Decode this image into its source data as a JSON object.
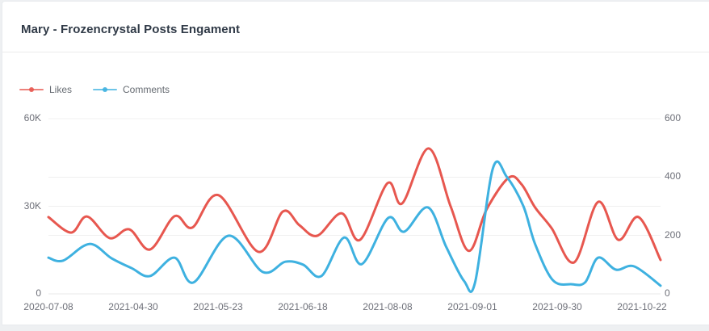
{
  "header": {
    "title": "Mary - Frozencrystal Posts Engament"
  },
  "legend": {
    "items": [
      {
        "label": "Likes",
        "color": "#e7574f"
      },
      {
        "label": "Comments",
        "color": "#3eb1e0"
      }
    ]
  },
  "chart_data": {
    "type": "line",
    "title": "Mary - Frozencrystal Posts Engament",
    "smooth": true,
    "grid": true,
    "legend_position": "top-left",
    "x_tick_labels": [
      "2020-07-08",
      "2021-04-30",
      "2021-05-23",
      "2021-06-18",
      "2021-08-08",
      "2021-09-01",
      "2021-09-30",
      "2021-10-22"
    ],
    "y_axis_left": {
      "series": "Likes",
      "tick_labels": [
        "60K",
        "30K",
        "0"
      ],
      "min": 0,
      "max": 60000,
      "grid_values": [
        0,
        30000,
        60000
      ]
    },
    "y_axis_right": {
      "series": "Comments",
      "tick_labels": [
        "600",
        "400",
        "200",
        "0"
      ],
      "min": 0,
      "max": 600,
      "grid_values": [
        0,
        200,
        400,
        600
      ]
    },
    "series": [
      {
        "name": "Likes",
        "axis": "left",
        "color": "#e7574f",
        "points": [
          [
            0.0,
            26300
          ],
          [
            0.037,
            21000
          ],
          [
            0.063,
            26500
          ],
          [
            0.1,
            19100
          ],
          [
            0.132,
            22100
          ],
          [
            0.166,
            15200
          ],
          [
            0.206,
            26600
          ],
          [
            0.235,
            22700
          ],
          [
            0.278,
            33800
          ],
          [
            0.343,
            14400
          ],
          [
            0.383,
            28200
          ],
          [
            0.41,
            23500
          ],
          [
            0.439,
            19900
          ],
          [
            0.479,
            27600
          ],
          [
            0.509,
            18500
          ],
          [
            0.554,
            37900
          ],
          [
            0.578,
            31000
          ],
          [
            0.621,
            49800
          ],
          [
            0.657,
            30000
          ],
          [
            0.687,
            14700
          ],
          [
            0.716,
            29000
          ],
          [
            0.752,
            39800
          ],
          [
            0.773,
            37500
          ],
          [
            0.795,
            29600
          ],
          [
            0.822,
            22500
          ],
          [
            0.859,
            10800
          ],
          [
            0.898,
            31500
          ],
          [
            0.931,
            18500
          ],
          [
            0.964,
            26300
          ],
          [
            1.0,
            11600
          ]
        ]
      },
      {
        "name": "Comments",
        "axis": "right",
        "color": "#3eb1e0",
        "points": [
          [
            0.0,
            124
          ],
          [
            0.024,
            114
          ],
          [
            0.067,
            171
          ],
          [
            0.103,
            122
          ],
          [
            0.136,
            88
          ],
          [
            0.166,
            61
          ],
          [
            0.206,
            124
          ],
          [
            0.237,
            39
          ],
          [
            0.294,
            199
          ],
          [
            0.35,
            75
          ],
          [
            0.387,
            110
          ],
          [
            0.416,
            100
          ],
          [
            0.446,
            61
          ],
          [
            0.483,
            193
          ],
          [
            0.512,
            102
          ],
          [
            0.555,
            260
          ],
          [
            0.581,
            213
          ],
          [
            0.62,
            296
          ],
          [
            0.65,
            160
          ],
          [
            0.679,
            44
          ],
          [
            0.697,
            39
          ],
          [
            0.726,
            429
          ],
          [
            0.749,
            400
          ],
          [
            0.776,
            300
          ],
          [
            0.795,
            171
          ],
          [
            0.824,
            47
          ],
          [
            0.855,
            33
          ],
          [
            0.877,
            40
          ],
          [
            0.898,
            124
          ],
          [
            0.927,
            83
          ],
          [
            0.957,
            94
          ],
          [
            1.0,
            28
          ]
        ]
      }
    ]
  }
}
